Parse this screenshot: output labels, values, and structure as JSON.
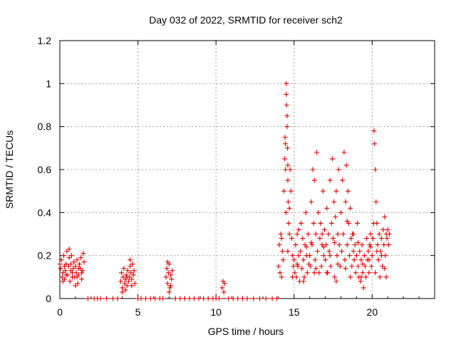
{
  "chart_data": {
    "type": "scatter",
    "title": "Day 032 of 2022, SRMTID for receiver sch2",
    "xlabel": "GPS time / hours",
    "ylabel": "SRMTID / TECUs",
    "xlim": [
      0,
      24
    ],
    "ylim": [
      0,
      1.2
    ],
    "xticks": [
      0,
      5,
      10,
      15,
      20
    ],
    "xtick_labels": [
      "0",
      "5",
      "10",
      "15",
      "20"
    ],
    "yticks": [
      0,
      0.2,
      0.4,
      0.6,
      0.8,
      1.0,
      1.2
    ],
    "ytick_labels": [
      "0",
      "0.2",
      "0.4",
      "0.6",
      "0.8",
      "1",
      "1.2"
    ],
    "grid": true,
    "marker": "+",
    "color": "#e00000",
    "series": [
      {
        "name": "sch2",
        "points": [
          [
            0.0,
            0.16
          ],
          [
            0.05,
            0.14
          ],
          [
            0.1,
            0.18
          ],
          [
            0.15,
            0.1
          ],
          [
            0.2,
            0.12
          ],
          [
            0.25,
            0.2
          ],
          [
            0.3,
            0.09
          ],
          [
            0.35,
            0.13
          ],
          [
            0.4,
            0.16
          ],
          [
            0.45,
            0.22
          ],
          [
            0.5,
            0.11
          ],
          [
            0.55,
            0.15
          ],
          [
            0.6,
            0.19
          ],
          [
            0.65,
            0.08
          ],
          [
            0.7,
            0.13
          ],
          [
            0.75,
            0.2
          ],
          [
            0.8,
            0.12
          ],
          [
            0.85,
            0.14
          ],
          [
            0.9,
            0.17
          ],
          [
            0.95,
            0.1
          ],
          [
            1.0,
            0.15
          ],
          [
            1.05,
            0.12
          ],
          [
            1.1,
            0.18
          ],
          [
            1.15,
            0.07
          ],
          [
            1.2,
            0.11
          ],
          [
            1.25,
            0.16
          ],
          [
            1.3,
            0.14
          ],
          [
            1.35,
            0.19
          ],
          [
            1.4,
            0.09
          ],
          [
            1.45,
            0.13
          ],
          [
            1.5,
            0.21
          ],
          [
            1.55,
            0.17
          ],
          [
            0.2,
            0.08
          ],
          [
            0.4,
            0.11
          ],
          [
            0.6,
            0.23
          ],
          [
            0.8,
            0.1
          ],
          [
            1.0,
            0.06
          ],
          [
            1.2,
            0.14
          ],
          [
            1.4,
            0.12
          ],
          [
            0.3,
            0.15
          ],
          [
            0.7,
            0.16
          ],
          [
            1.1,
            0.1
          ],
          [
            1.8,
            0.0
          ],
          [
            2.2,
            0.0
          ],
          [
            2.4,
            0.0
          ],
          [
            2.6,
            0.0
          ],
          [
            3.0,
            0.0
          ],
          [
            3.4,
            0.0
          ],
          [
            3.7,
            0.0
          ],
          [
            3.9,
            0.08
          ],
          [
            3.95,
            0.12
          ],
          [
            4.0,
            0.05
          ],
          [
            4.05,
            0.1
          ],
          [
            4.1,
            0.14
          ],
          [
            4.15,
            0.07
          ],
          [
            4.2,
            0.09
          ],
          [
            4.25,
            0.11
          ],
          [
            4.3,
            0.06
          ],
          [
            4.35,
            0.13
          ],
          [
            4.4,
            0.08
          ],
          [
            4.45,
            0.1
          ],
          [
            4.5,
            0.15
          ],
          [
            4.55,
            0.12
          ],
          [
            4.6,
            0.09
          ],
          [
            4.65,
            0.16
          ],
          [
            4.7,
            0.11
          ],
          [
            4.75,
            0.13
          ],
          [
            4.8,
            0.07
          ],
          [
            4.0,
            0.03
          ],
          [
            4.2,
            0.04
          ],
          [
            4.5,
            0.18
          ],
          [
            4.6,
            0.06
          ],
          [
            4.3,
            0.1
          ],
          [
            5.0,
            0.0
          ],
          [
            5.2,
            0.0
          ],
          [
            5.5,
            0.0
          ],
          [
            5.8,
            0.0
          ],
          [
            6.1,
            0.0
          ],
          [
            6.4,
            0.0
          ],
          [
            6.6,
            0.0
          ],
          [
            6.8,
            0.1
          ],
          [
            6.85,
            0.14
          ],
          [
            6.9,
            0.07
          ],
          [
            6.95,
            0.12
          ],
          [
            7.0,
            0.16
          ],
          [
            7.05,
            0.05
          ],
          [
            7.1,
            0.11
          ],
          [
            7.15,
            0.09
          ],
          [
            7.2,
            0.13
          ],
          [
            7.0,
            0.03
          ],
          [
            6.9,
            0.17
          ],
          [
            7.1,
            0.06
          ],
          [
            7.4,
            0.0
          ],
          [
            7.7,
            0.0
          ],
          [
            8.0,
            0.0
          ],
          [
            8.3,
            0.0
          ],
          [
            8.6,
            0.0
          ],
          [
            8.9,
            0.0
          ],
          [
            9.2,
            0.0
          ],
          [
            9.5,
            0.0
          ],
          [
            9.8,
            0.0
          ],
          [
            10.0,
            0.0
          ],
          [
            10.2,
            0.0
          ],
          [
            10.4,
            0.05
          ],
          [
            10.45,
            0.08
          ],
          [
            10.5,
            0.03
          ],
          [
            10.55,
            0.07
          ],
          [
            10.8,
            0.0
          ],
          [
            11.1,
            0.0
          ],
          [
            11.4,
            0.0
          ],
          [
            11.7,
            0.0
          ],
          [
            12.0,
            0.0
          ],
          [
            12.4,
            0.0
          ],
          [
            12.8,
            0.0
          ],
          [
            13.2,
            0.0
          ],
          [
            13.6,
            0.0
          ],
          [
            13.9,
            0.0
          ],
          [
            14.0,
            0.15
          ],
          [
            14.05,
            0.25
          ],
          [
            14.1,
            0.12
          ],
          [
            14.15,
            0.3
          ],
          [
            14.2,
            0.1
          ],
          [
            14.25,
            0.22
          ],
          [
            14.3,
            0.18
          ],
          [
            14.35,
            0.5
          ],
          [
            14.4,
            0.65
          ],
          [
            14.42,
            0.75
          ],
          [
            14.45,
            0.6
          ],
          [
            14.48,
            0.4
          ],
          [
            14.5,
            1.0
          ],
          [
            14.52,
            0.9
          ],
          [
            14.55,
            0.85
          ],
          [
            14.58,
            0.7
          ],
          [
            14.6,
            0.55
          ],
          [
            14.62,
            0.45
          ],
          [
            14.65,
            0.35
          ],
          [
            14.7,
            0.3
          ],
          [
            14.75,
            0.6
          ],
          [
            14.8,
            0.5
          ],
          [
            14.85,
            0.28
          ],
          [
            14.9,
            0.2
          ],
          [
            14.95,
            0.15
          ],
          [
            14.5,
            0.95
          ],
          [
            14.55,
            0.8
          ],
          [
            14.45,
            0.72
          ],
          [
            14.6,
            0.62
          ],
          [
            14.7,
            0.42
          ],
          [
            15.0,
            0.18
          ],
          [
            15.05,
            0.12
          ],
          [
            15.1,
            0.25
          ],
          [
            15.15,
            0.1
          ],
          [
            15.2,
            0.3
          ],
          [
            15.25,
            0.15
          ],
          [
            15.3,
            0.2
          ],
          [
            15.35,
            0.08
          ],
          [
            15.4,
            0.22
          ],
          [
            15.45,
            0.35
          ],
          [
            15.5,
            0.14
          ],
          [
            15.55,
            0.28
          ],
          [
            15.6,
            0.18
          ],
          [
            15.65,
            0.1
          ],
          [
            15.7,
            0.25
          ],
          [
            15.75,
            0.4
          ],
          [
            15.8,
            0.2
          ],
          [
            15.85,
            0.12
          ],
          [
            15.9,
            0.3
          ],
          [
            15.95,
            0.16
          ],
          [
            16.0,
            0.2
          ],
          [
            16.05,
            0.15
          ],
          [
            16.1,
            0.45
          ],
          [
            16.15,
            0.25
          ],
          [
            16.2,
            0.6
          ],
          [
            16.25,
            0.35
          ],
          [
            16.3,
            0.55
          ],
          [
            16.35,
            0.18
          ],
          [
            16.4,
            0.3
          ],
          [
            16.45,
            0.68
          ],
          [
            16.5,
            0.22
          ],
          [
            16.55,
            0.4
          ],
          [
            16.6,
            0.12
          ],
          [
            16.65,
            0.28
          ],
          [
            16.7,
            0.35
          ],
          [
            16.75,
            0.15
          ],
          [
            16.8,
            0.25
          ],
          [
            16.85,
            0.5
          ],
          [
            16.9,
            0.2
          ],
          [
            16.95,
            0.32
          ],
          [
            17.0,
            0.18
          ],
          [
            17.05,
            0.25
          ],
          [
            17.1,
            0.42
          ],
          [
            17.15,
            0.12
          ],
          [
            17.2,
            0.3
          ],
          [
            17.25,
            0.22
          ],
          [
            17.3,
            0.55
          ],
          [
            17.35,
            0.15
          ],
          [
            17.4,
            0.35
          ],
          [
            17.45,
            0.65
          ],
          [
            17.5,
            0.28
          ],
          [
            17.55,
            0.45
          ],
          [
            17.6,
            0.1
          ],
          [
            17.65,
            0.38
          ],
          [
            17.7,
            0.5
          ],
          [
            17.75,
            0.2
          ],
          [
            17.8,
            0.3
          ],
          [
            17.85,
            0.6
          ],
          [
            17.9,
            0.25
          ],
          [
            17.95,
            0.15
          ],
          [
            18.0,
            0.4
          ],
          [
            18.05,
            0.22
          ],
          [
            18.1,
            0.55
          ],
          [
            18.15,
            0.3
          ],
          [
            18.2,
            0.68
          ],
          [
            18.25,
            0.18
          ],
          [
            18.3,
            0.45
          ],
          [
            18.35,
            0.62
          ],
          [
            18.4,
            0.25
          ],
          [
            18.45,
            0.5
          ],
          [
            18.5,
            0.35
          ],
          [
            18.55,
            0.2
          ],
          [
            18.6,
            0.42
          ],
          [
            18.65,
            0.28
          ],
          [
            18.7,
            0.15
          ],
          [
            18.75,
            0.3
          ],
          [
            18.8,
            0.22
          ],
          [
            18.85,
            0.18
          ],
          [
            18.9,
            0.25
          ],
          [
            18.95,
            0.12
          ],
          [
            19.0,
            0.2
          ],
          [
            19.05,
            0.35
          ],
          [
            19.1,
            0.15
          ],
          [
            19.15,
            0.1
          ],
          [
            19.2,
            0.22
          ],
          [
            19.25,
            0.08
          ],
          [
            19.3,
            0.18
          ],
          [
            19.35,
            0.25
          ],
          [
            19.4,
            0.12
          ],
          [
            19.45,
            0.05
          ],
          [
            19.5,
            0.2
          ],
          [
            19.55,
            0.15
          ],
          [
            19.6,
            0.1
          ],
          [
            19.65,
            0.28
          ],
          [
            19.7,
            0.18
          ],
          [
            19.75,
            0.22
          ],
          [
            19.8,
            0.12
          ],
          [
            19.85,
            0.25
          ],
          [
            19.9,
            0.3
          ],
          [
            19.95,
            0.15
          ],
          [
            20.0,
            0.2
          ],
          [
            20.05,
            0.28
          ],
          [
            20.1,
            0.35
          ],
          [
            20.12,
            0.78
          ],
          [
            20.15,
            0.72
          ],
          [
            20.2,
            0.6
          ],
          [
            20.25,
            0.45
          ],
          [
            20.3,
            0.35
          ],
          [
            20.35,
            0.25
          ],
          [
            20.4,
            0.18
          ],
          [
            20.45,
            0.3
          ],
          [
            20.5,
            0.1
          ],
          [
            20.55,
            0.22
          ],
          [
            20.6,
            0.28
          ],
          [
            20.65,
            0.15
          ],
          [
            20.7,
            0.32
          ],
          [
            20.75,
            0.25
          ],
          [
            20.8,
            0.38
          ],
          [
            20.85,
            0.2
          ],
          [
            20.9,
            0.3
          ],
          [
            20.95,
            0.28
          ],
          [
            21.0,
            0.32
          ],
          [
            21.05,
            0.25
          ],
          [
            21.1,
            0.3
          ],
          [
            14.2,
            0.28
          ],
          [
            14.6,
            0.22
          ],
          [
            15.2,
            0.16
          ],
          [
            15.8,
            0.24
          ],
          [
            16.3,
            0.12
          ],
          [
            16.8,
            0.3
          ],
          [
            17.3,
            0.2
          ],
          [
            17.8,
            0.16
          ],
          [
            18.3,
            0.14
          ],
          [
            18.8,
            0.3
          ],
          [
            19.3,
            0.1
          ],
          [
            19.8,
            0.18
          ],
          [
            20.3,
            0.22
          ],
          [
            20.8,
            0.14
          ],
          [
            15.3,
            0.32
          ],
          [
            16.1,
            0.26
          ],
          [
            16.9,
            0.24
          ],
          [
            17.6,
            0.26
          ],
          [
            18.4,
            0.36
          ],
          [
            19.1,
            0.26
          ],
          [
            19.9,
            0.24
          ],
          [
            20.6,
            0.2
          ],
          [
            14.9,
            0.1
          ],
          [
            15.6,
            0.08
          ],
          [
            16.4,
            0.14
          ],
          [
            17.1,
            0.12
          ],
          [
            17.7,
            0.08
          ],
          [
            18.6,
            0.1
          ],
          [
            19.4,
            0.16
          ],
          [
            20.2,
            0.12
          ],
          [
            20.9,
            0.1
          ]
        ]
      }
    ]
  }
}
